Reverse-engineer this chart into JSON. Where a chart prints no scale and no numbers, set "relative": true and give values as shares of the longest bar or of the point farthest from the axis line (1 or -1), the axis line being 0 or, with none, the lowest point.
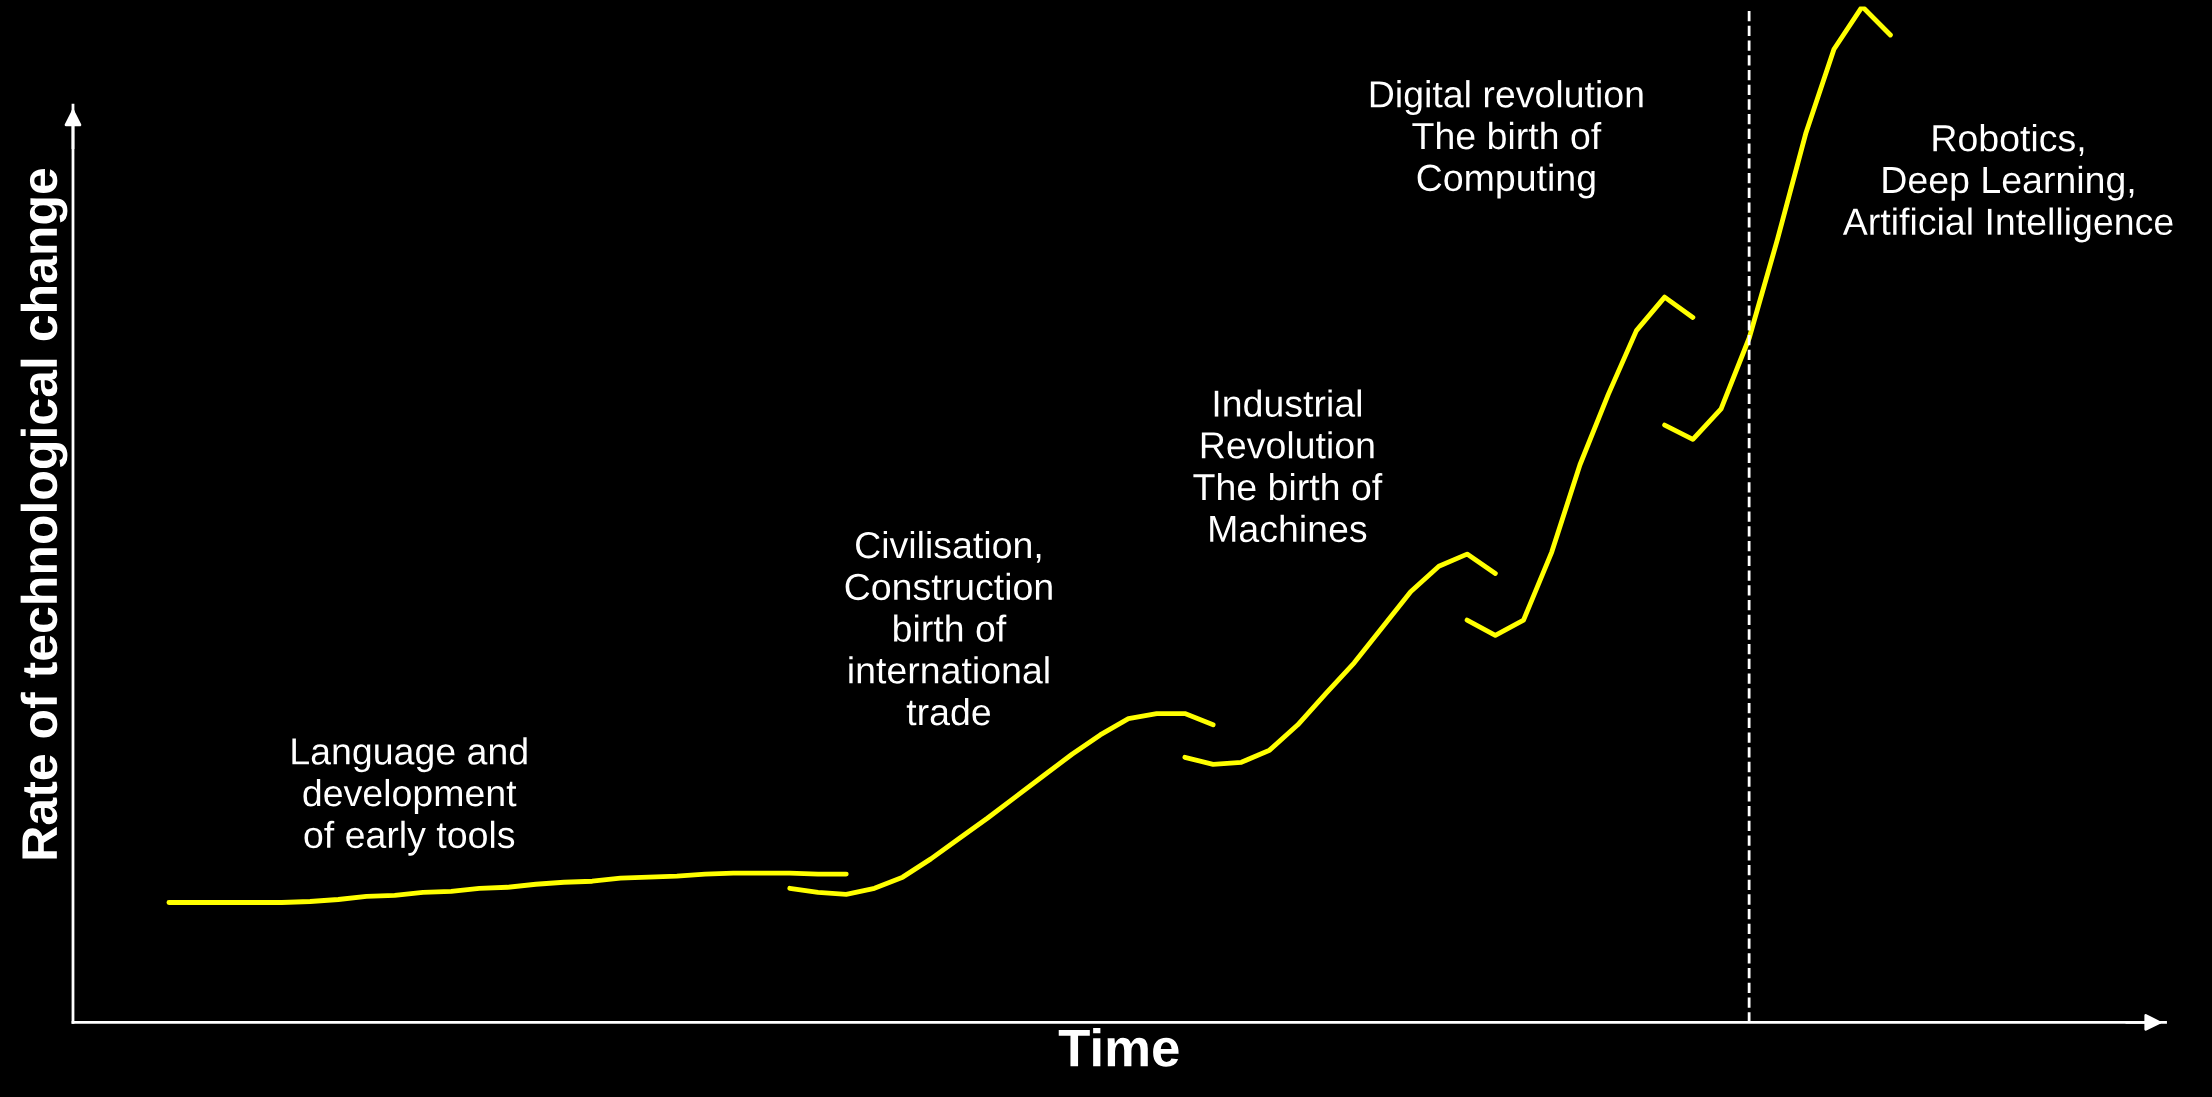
{
  "chart_data": {
    "type": "line",
    "relative": true,
    "xlabel": "Time",
    "ylabel": "Rate of technological change",
    "categories": [
      null,
      null,
      null,
      null,
      null,
      null,
      null,
      null,
      null,
      null,
      null,
      null,
      null,
      null,
      null,
      null,
      null,
      null,
      null,
      null,
      null,
      null,
      null,
      null,
      null,
      null,
      null,
      null,
      null,
      null,
      null,
      null,
      null,
      null,
      null,
      null,
      null,
      null,
      null,
      null,
      null,
      null,
      null,
      null,
      null,
      null,
      null,
      null,
      null,
      null,
      null,
      null,
      null,
      null,
      null,
      null,
      null,
      null,
      null,
      null,
      null,
      null,
      null,
      null,
      null,
      null,
      null,
      null,
      null,
      null,
      null,
      null,
      null,
      null
    ],
    "tick_labels": false,
    "legend": false,
    "line_style": "solid",
    "marker": "none",
    "series": [
      {
        "color": "#ffff00",
        "values": [
          null,
          null,
          null,
          0.118,
          0.118,
          0.118,
          0.118,
          0.118,
          0.119,
          0.121,
          0.124,
          0.125,
          0.128,
          0.129,
          0.132,
          0.133,
          0.136,
          0.138,
          0.139,
          0.142,
          0.143,
          0.144,
          0.146,
          0.147,
          0.147,
          0.147,
          0.146,
          0.146,
          null,
          null,
          null,
          null,
          null,
          null,
          null,
          null,
          null,
          null,
          null,
          null,
          null,
          null,
          null,
          null,
          null,
          null,
          null,
          null,
          null,
          null,
          null,
          null,
          null,
          null,
          null,
          null,
          null,
          null,
          null,
          null,
          null,
          null,
          null,
          null,
          null,
          null,
          null,
          null,
          null,
          null,
          null,
          null,
          null,
          null
        ]
      },
      {
        "color": "#ffff00",
        "values": [
          null,
          null,
          null,
          null,
          null,
          null,
          null,
          null,
          null,
          null,
          null,
          null,
          null,
          null,
          null,
          null,
          null,
          null,
          null,
          null,
          null,
          null,
          null,
          null,
          null,
          0.132,
          0.128,
          0.126,
          0.132,
          0.143,
          0.161,
          0.181,
          0.201,
          0.222,
          0.243,
          0.264,
          0.283,
          0.299,
          0.304,
          0.304,
          0.293,
          null,
          null,
          null,
          null,
          null,
          null,
          null,
          null,
          null,
          null,
          null,
          null,
          null,
          null,
          null,
          null,
          null,
          null,
          null,
          null,
          null,
          null,
          null,
          null,
          null,
          null,
          null,
          null,
          null,
          null,
          null,
          null,
          null
        ]
      },
      {
        "color": "#ffff00",
        "values": [
          null,
          null,
          null,
          null,
          null,
          null,
          null,
          null,
          null,
          null,
          null,
          null,
          null,
          null,
          null,
          null,
          null,
          null,
          null,
          null,
          null,
          null,
          null,
          null,
          null,
          null,
          null,
          null,
          null,
          null,
          null,
          null,
          null,
          null,
          null,
          null,
          null,
          null,
          null,
          0.261,
          0.254,
          0.256,
          0.268,
          0.293,
          0.324,
          0.354,
          0.389,
          0.424,
          0.449,
          0.461,
          0.442,
          null,
          null,
          null,
          null,
          null,
          null,
          null,
          null,
          null,
          null,
          null,
          null,
          null,
          null,
          null,
          null,
          null,
          null,
          null,
          null,
          null,
          null,
          null
        ]
      },
      {
        "color": "#ffff00",
        "values": [
          null,
          null,
          null,
          null,
          null,
          null,
          null,
          null,
          null,
          null,
          null,
          null,
          null,
          null,
          null,
          null,
          null,
          null,
          null,
          null,
          null,
          null,
          null,
          null,
          null,
          null,
          null,
          null,
          null,
          null,
          null,
          null,
          null,
          null,
          null,
          null,
          null,
          null,
          null,
          null,
          null,
          null,
          null,
          null,
          null,
          null,
          null,
          null,
          null,
          0.396,
          0.381,
          0.396,
          0.463,
          0.549,
          0.618,
          0.681,
          0.714,
          0.694,
          null,
          null,
          null,
          null,
          null,
          null,
          null,
          null,
          null,
          null,
          null,
          null,
          null,
          null,
          null,
          null
        ]
      },
      {
        "color": "#ffff00",
        "values": [
          null,
          null,
          null,
          null,
          null,
          null,
          null,
          null,
          null,
          null,
          null,
          null,
          null,
          null,
          null,
          null,
          null,
          null,
          null,
          null,
          null,
          null,
          null,
          null,
          null,
          null,
          null,
          null,
          null,
          null,
          null,
          null,
          null,
          null,
          null,
          null,
          null,
          null,
          null,
          null,
          null,
          null,
          null,
          null,
          null,
          null,
          null,
          null,
          null,
          null,
          null,
          null,
          null,
          null,
          null,
          null,
          0.588,
          0.574,
          0.604,
          0.674,
          0.771,
          0.875,
          0.958,
          1.0,
          0.972,
          null,
          null,
          null,
          null,
          null,
          null,
          null,
          null,
          null
        ]
      }
    ],
    "annotations": [
      "Language and\ndevelopment\nof early tools",
      "Civilisation,\nConstruction\nbirth of\ninternational\ntrade",
      "Industrial\nRevolution\nThe birth of\nMachines",
      "Digital revolution\nThe birth of\nComputing",
      "Robotics,\nDeep Learning,\nArtificial Intelligence"
    ]
  }
}
